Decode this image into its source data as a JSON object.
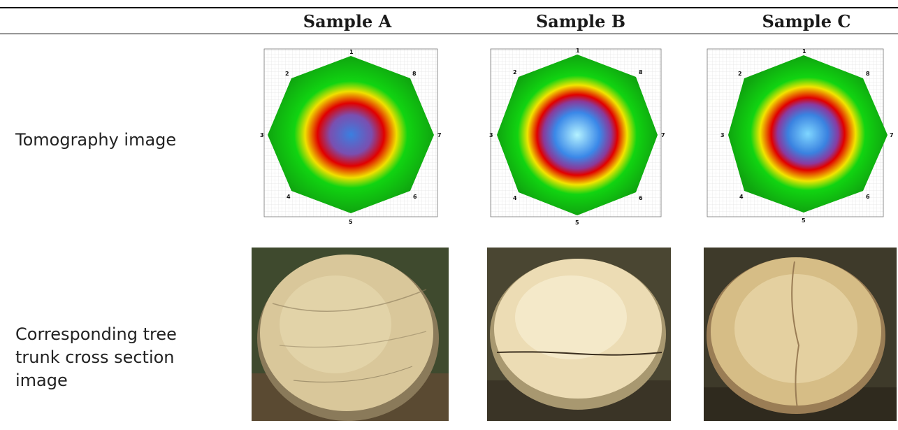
{
  "columns": [
    "Sample A",
    "Sample B",
    "Sample C"
  ],
  "rows": {
    "tomography_label": "Tomography image",
    "cross_section_label_lines": [
      "Corresponding tree",
      "trunk cross section",
      "image"
    ]
  },
  "sensor_numbers": [
    "1",
    "2",
    "3",
    "4",
    "5",
    "6",
    "7",
    "8"
  ],
  "colors": {
    "sound_wood_green": "#11c811",
    "transition_yellow": "#f2e400",
    "decay_red": "#e00000",
    "center_blue": "#3a88e8",
    "cavity_light_blue": "#9fe3ff"
  }
}
